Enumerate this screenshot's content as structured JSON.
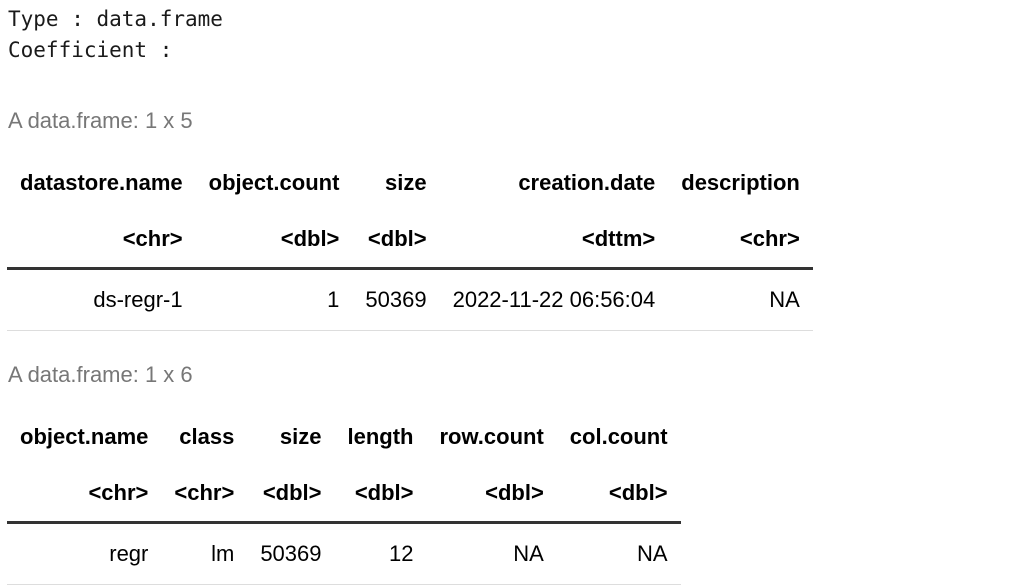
{
  "header": {
    "type_line": "Type : data.frame",
    "coefficient_line": "Coefficient :"
  },
  "datastore_table": {
    "caption": "A data.frame: 1 x 5",
    "columns": [
      {
        "name": "datastore.name",
        "type": "<chr>"
      },
      {
        "name": "object.count",
        "type": "<dbl>"
      },
      {
        "name": "size",
        "type": "<dbl>"
      },
      {
        "name": "creation.date",
        "type": "<dttm>"
      },
      {
        "name": "description",
        "type": "<chr>"
      }
    ],
    "rows": [
      [
        "ds-regr-1",
        "1",
        "50369",
        "2022-11-22 06:56:04",
        "NA"
      ]
    ]
  },
  "object_table": {
    "caption": "A data.frame: 1 x 6",
    "columns": [
      {
        "name": "object.name",
        "type": "<chr>"
      },
      {
        "name": "class",
        "type": "<chr>"
      },
      {
        "name": "size",
        "type": "<dbl>"
      },
      {
        "name": "length",
        "type": "<dbl>"
      },
      {
        "name": "row.count",
        "type": "<dbl>"
      },
      {
        "name": "col.count",
        "type": "<dbl>"
      }
    ],
    "rows": [
      [
        "regr",
        "lm",
        "50369",
        "12",
        "NA",
        "NA"
      ]
    ]
  }
}
